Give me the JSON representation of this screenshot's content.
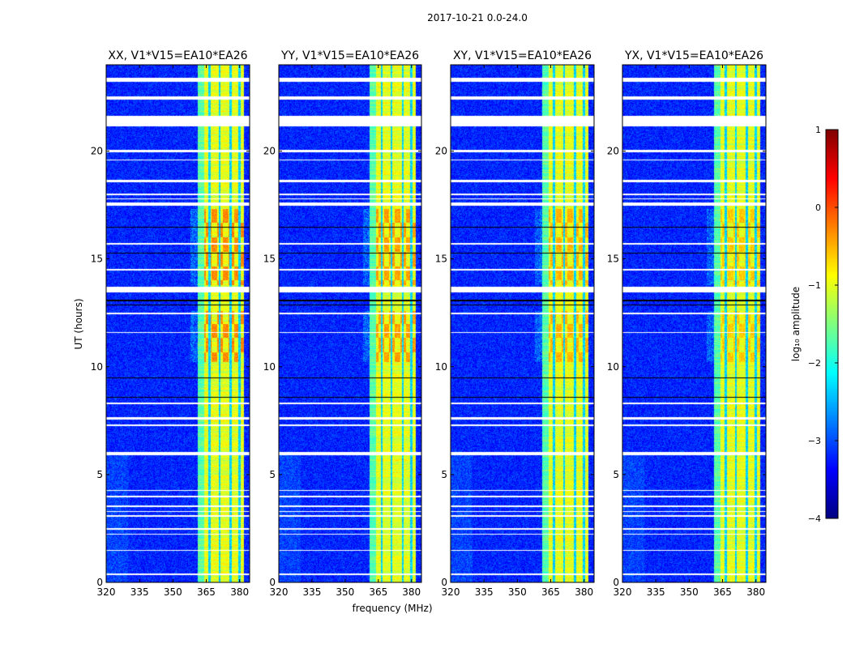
{
  "chart_data": {
    "type": "heatmap",
    "title": "2017-10-21 0.0-24.0",
    "xlabel": "frequency (MHz)",
    "ylabel": "UT (hours)",
    "xlim": [
      320,
      384.5
    ],
    "ylim": [
      0,
      24
    ],
    "xticks": [
      320,
      335,
      350,
      365,
      380
    ],
    "yticks": [
      0,
      5,
      10,
      15,
      20
    ],
    "colorbar": {
      "label": "log₁₀ amplitude",
      "range": [
        -4,
        1
      ],
      "ticks": [
        1,
        0,
        -1,
        -2,
        -3,
        -4
      ],
      "tick_labels": [
        "1",
        "0",
        "−1",
        "−2",
        "−3",
        "−4"
      ],
      "colormap": "jet"
    },
    "panels": [
      {
        "title": "XX, V1*V15=EA10*EA26",
        "hot_level": -0.3
      },
      {
        "title": "YY, V1*V15=EA10*EA26",
        "hot_level": -0.4
      },
      {
        "title": "XY, V1*V15=EA10*EA26",
        "hot_level": -0.5
      },
      {
        "title": "YX, V1*V15=EA10*EA26",
        "hot_level": -0.6
      }
    ],
    "background_level": -3.2,
    "rfi_band_mhz": [
      361,
      382
    ],
    "rfi_band_level": -1.0,
    "rfi_dark_channels_mhz": [
      366.5,
      371,
      376,
      380
    ],
    "rfi_hot_ut_ranges": [
      [
        13.8,
        17.3
      ],
      [
        10.2,
        12.6
      ]
    ],
    "flagged_ut_white": [
      [
        23.2,
        23.4
      ],
      [
        22.4,
        22.55
      ],
      [
        21.15,
        21.65
      ],
      [
        19.95,
        20.05
      ],
      [
        19.55,
        19.62
      ],
      [
        18.55,
        18.65
      ],
      [
        17.95,
        18.02
      ],
      [
        17.75,
        17.82
      ],
      [
        17.45,
        17.6
      ],
      [
        15.65,
        15.72
      ],
      [
        14.45,
        14.52
      ],
      [
        13.45,
        13.7
      ],
      [
        12.45,
        12.52
      ],
      [
        11.55,
        11.6
      ],
      [
        8.25,
        8.32
      ],
      [
        7.55,
        7.65
      ],
      [
        7.25,
        7.32
      ],
      [
        5.9,
        6.05
      ],
      [
        4.25,
        4.3
      ],
      [
        3.95,
        4.02
      ],
      [
        3.5,
        3.55
      ],
      [
        3.25,
        3.3
      ],
      [
        3.05,
        3.1
      ],
      [
        2.45,
        2.5
      ],
      [
        2.2,
        2.25
      ],
      [
        1.45,
        1.52
      ],
      [
        0.35,
        0.42
      ]
    ],
    "flagged_ut_black": [
      [
        16.45,
        16.5
      ],
      [
        15.25,
        15.3
      ],
      [
        13.05,
        13.12
      ],
      [
        12.85,
        12.9
      ],
      [
        9.45,
        9.5
      ],
      [
        8.55,
        8.6
      ]
    ]
  }
}
